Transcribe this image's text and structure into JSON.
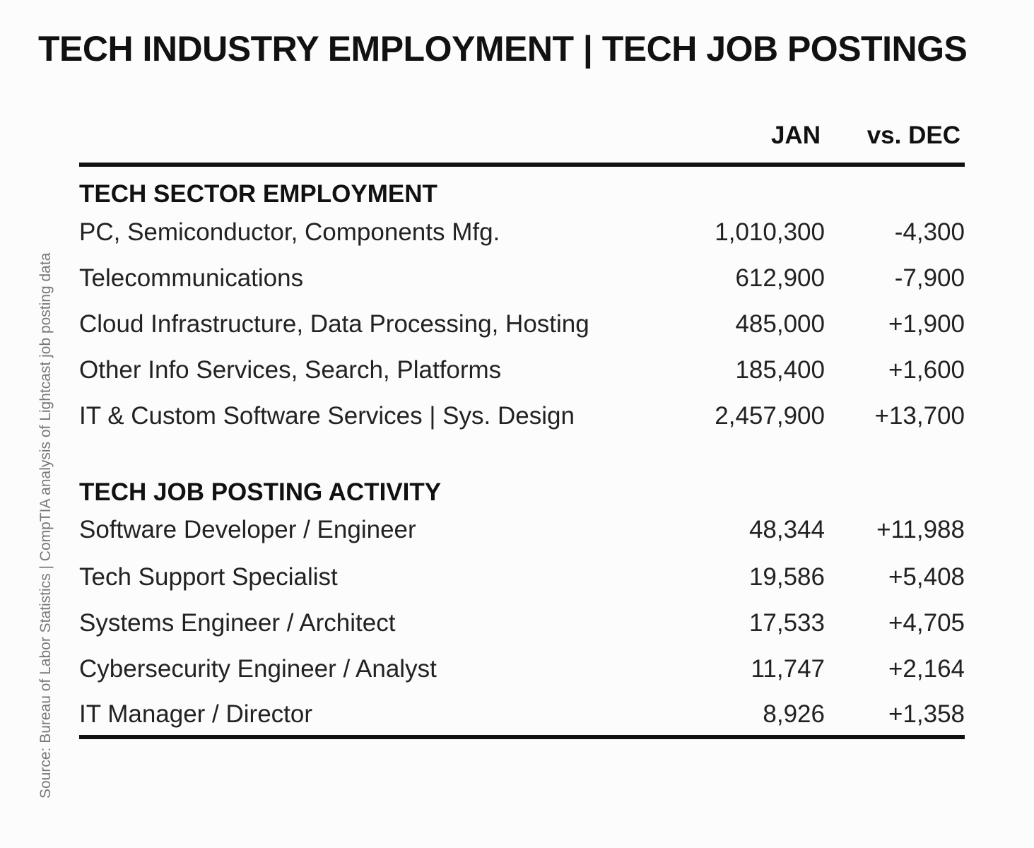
{
  "title": "TECH INDUSTRY EMPLOYMENT | TECH JOB POSTINGS",
  "source": "Source: Bureau of Labor Statistics | CompTIA analysis of Lightcast job posting data",
  "columns": {
    "jan": "JAN",
    "change": "vs. DEC"
  },
  "sections": [
    {
      "heading": "TECH SECTOR EMPLOYMENT",
      "rows": [
        {
          "label": "PC, Semiconductor, Components Mfg.",
          "jan": "1,010,300",
          "change": "-4,300"
        },
        {
          "label": "Telecommunications",
          "jan": "612,900",
          "change": "-7,900"
        },
        {
          "label": "Cloud Infrastructure, Data Processing, Hosting",
          "jan": "485,000",
          "change": "+1,900"
        },
        {
          "label": "Other Info Services, Search, Platforms",
          "jan": "185,400",
          "change": "+1,600"
        },
        {
          "label": "IT & Custom Software Services | Sys. Design",
          "jan": "2,457,900",
          "change": "+13,700"
        }
      ]
    },
    {
      "heading": "TECH JOB POSTING ACTIVITY",
      "rows": [
        {
          "label": "Software Developer / Engineer",
          "jan": "48,344",
          "change": "+11,988"
        },
        {
          "label": "Tech Support Specialist",
          "jan": "19,586",
          "change": "+5,408"
        },
        {
          "label": "Systems Engineer / Architect",
          "jan": "17,533",
          "change": "+4,705"
        },
        {
          "label": "Cybersecurity Engineer / Analyst",
          "jan": "11,747",
          "change": "+2,164"
        },
        {
          "label": "IT Manager / Director",
          "jan": "8,926",
          "change": "+1,358"
        }
      ]
    }
  ]
}
